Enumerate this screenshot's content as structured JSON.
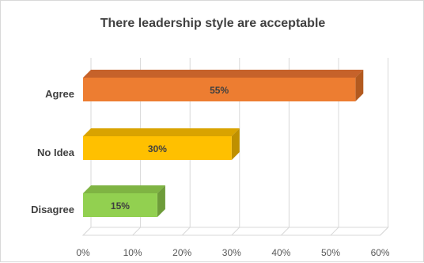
{
  "chart_data": {
    "type": "bar",
    "orientation": "horizontal",
    "style": "3d",
    "title": "There leadership style are acceptable",
    "categories": [
      "Agree",
      "No Idea",
      "Disagree"
    ],
    "values": [
      55,
      30,
      15
    ],
    "data_labels": [
      "55%",
      "30%",
      "15%"
    ],
    "xlim": [
      0,
      60
    ],
    "xticks": [
      "0%",
      "10%",
      "20%",
      "30%",
      "40%",
      "50%",
      "60%"
    ],
    "grid": true,
    "legend": "none",
    "colors": [
      "#ed7d31",
      "#ffc000",
      "#92d050"
    ],
    "side_colors": [
      "#b35a1f",
      "#bf9000",
      "#6e9c3a"
    ],
    "top_colors": [
      "#c6622a",
      "#d9a300",
      "#7fb443"
    ]
  }
}
